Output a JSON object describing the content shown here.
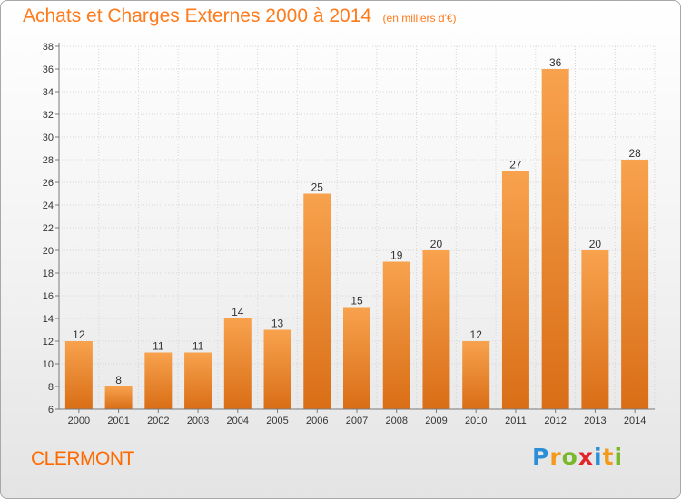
{
  "title": "Achats et Charges Externes 2000 à 2014",
  "subtitle": "(en milliers d'€)",
  "location": "CLERMONT",
  "brand": {
    "text": "Proxiti",
    "letters": [
      {
        "ch": "P",
        "color": "#2a8fd6"
      },
      {
        "ch": "r",
        "color": "#f39a1d"
      },
      {
        "ch": "o",
        "color": "#79b829"
      },
      {
        "ch": "x",
        "color": "#e2232a"
      },
      {
        "ch": "i",
        "color": "#2a8fd6"
      },
      {
        "ch": "t",
        "color": "#f39a1d"
      },
      {
        "ch": "i",
        "color": "#79b829"
      }
    ]
  },
  "colors": {
    "title": "#ff7a1a",
    "bar_light": "#f8a24e",
    "bar_dark": "#d96e16",
    "grid": "#d6d6d6",
    "axis": "#7a7a7a",
    "text": "#333333"
  },
  "chart_data": {
    "type": "bar",
    "title": "Achats et Charges Externes 2000 à 2014",
    "subtitle": "(en milliers d'€)",
    "categories": [
      "2000",
      "2001",
      "2002",
      "2003",
      "2004",
      "2005",
      "2006",
      "2007",
      "2008",
      "2009",
      "2010",
      "2011",
      "2012",
      "2013",
      "2014"
    ],
    "values": [
      12,
      8,
      11,
      11,
      14,
      13,
      25,
      15,
      19,
      20,
      12,
      27,
      36,
      20,
      28
    ],
    "ylim": [
      6,
      38
    ],
    "yticks": [
      6,
      8,
      10,
      12,
      14,
      16,
      18,
      20,
      22,
      24,
      26,
      28,
      30,
      32,
      34,
      36,
      38
    ],
    "grid": true,
    "data_labels": true
  }
}
